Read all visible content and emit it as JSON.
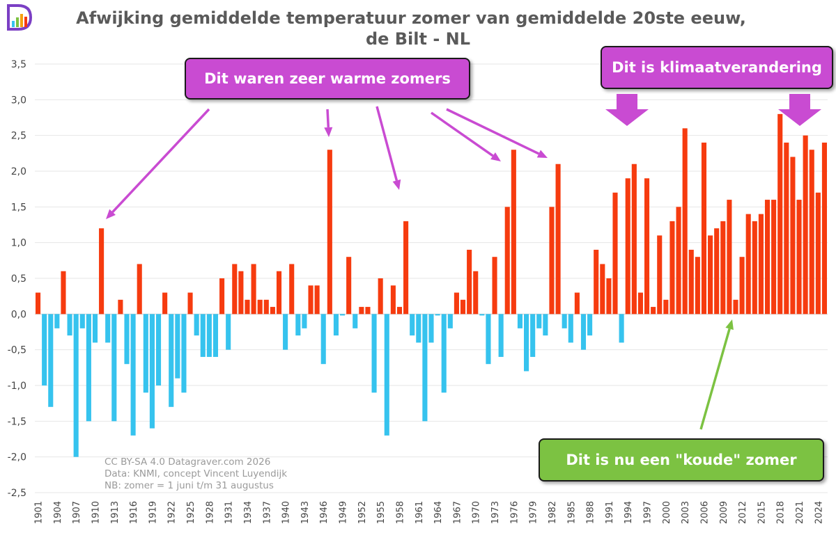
{
  "title_line1": "Afwijking gemiddelde temperatuur zomer van gemiddelde 20ste eeuw,",
  "title_line2": "de Bilt - NL",
  "annotations": {
    "warm": "Dit waren zeer warme zomers",
    "climate": "Dit is klimaatverandering",
    "cold": "Dit is nu een \"koude\" zomer"
  },
  "credits": {
    "line1": "CC BY-SA 4.0 Datagraver.com 2026",
    "line2": "Data: KNMI, concept Vincent Luyendijk",
    "line3": "NB: zomer = 1 juni t/m 31 augustus"
  },
  "colors": {
    "positive": "#f63b0f",
    "negative": "#36c3ee",
    "callout_purple": "#c94bd2",
    "callout_green": "#7cc242",
    "arrow_purple": "#c94bd2",
    "arrow_green": "#7cc242",
    "title": "#5a5a5a"
  },
  "logo": "datagraver-logo-icon",
  "chart_data": {
    "type": "bar",
    "x_start": 1901,
    "x_end": 2025,
    "x_tick_labels": [
      "1901",
      "1904",
      "1907",
      "1910",
      "1913",
      "1916",
      "1919",
      "1922",
      "1925",
      "1928",
      "1931",
      "1934",
      "1937",
      "1940",
      "1943",
      "1946",
      "1949",
      "1952",
      "1955",
      "1958",
      "1961",
      "1964",
      "1967",
      "1970",
      "1973",
      "1976",
      "1979",
      "1982",
      "1985",
      "1988",
      "1991",
      "1994",
      "1997",
      "2000",
      "2003",
      "2006",
      "2009",
      "2012",
      "2015",
      "2018",
      "2021",
      "2024"
    ],
    "y_tick_labels": [
      "3,5",
      "3,0",
      "2,5",
      "2,0",
      "1,5",
      "1,0",
      "0,5",
      "0,0",
      "-0,5",
      "-1,0",
      "-1,5",
      "-2,0",
      "-2,5"
    ],
    "ylim": [
      -2.5,
      3.5
    ],
    "y_step": 0.5,
    "grid": true,
    "values": [
      0.3,
      -1.0,
      -1.3,
      -0.2,
      0.6,
      -0.3,
      -2.0,
      -0.2,
      -1.5,
      -0.4,
      1.2,
      -0.4,
      -1.5,
      0.2,
      -0.7,
      -1.7,
      0.7,
      -1.1,
      -1.6,
      -1.0,
      0.3,
      -1.3,
      -0.9,
      -1.1,
      0.3,
      -0.3,
      -0.6,
      -0.6,
      -0.6,
      0.5,
      -0.5,
      0.7,
      0.6,
      0.2,
      0.7,
      0.2,
      0.2,
      0.1,
      0.6,
      -0.5,
      0.7,
      -0.3,
      -0.2,
      0.4,
      0.4,
      -0.7,
      2.3,
      -0.3,
      -0.02,
      0.8,
      -0.2,
      0.1,
      0.1,
      -1.1,
      0.5,
      -1.7,
      0.4,
      0.1,
      1.3,
      -0.3,
      -0.4,
      -1.5,
      -0.4,
      -0.02,
      -1.1,
      -0.2,
      0.3,
      0.2,
      0.9,
      0.6,
      -0.02,
      -0.7,
      0.8,
      -0.6,
      1.5,
      2.3,
      -0.2,
      -0.8,
      -0.6,
      -0.2,
      -0.3,
      1.5,
      2.1,
      -0.2,
      -0.4,
      0.3,
      -0.5,
      -0.3,
      0.9,
      0.7,
      0.5,
      1.7,
      -0.4,
      1.9,
      2.1,
      0.3,
      1.9,
      0.1,
      1.1,
      0.2,
      1.3,
      1.5,
      2.6,
      0.9,
      0.8,
      2.4,
      1.1,
      1.2,
      1.3,
      1.6,
      0.2,
      0.8,
      1.4,
      1.3,
      1.4,
      1.6,
      1.6,
      2.8,
      2.4,
      2.2,
      1.6,
      2.5,
      2.3,
      1.7,
      2.4
    ]
  }
}
